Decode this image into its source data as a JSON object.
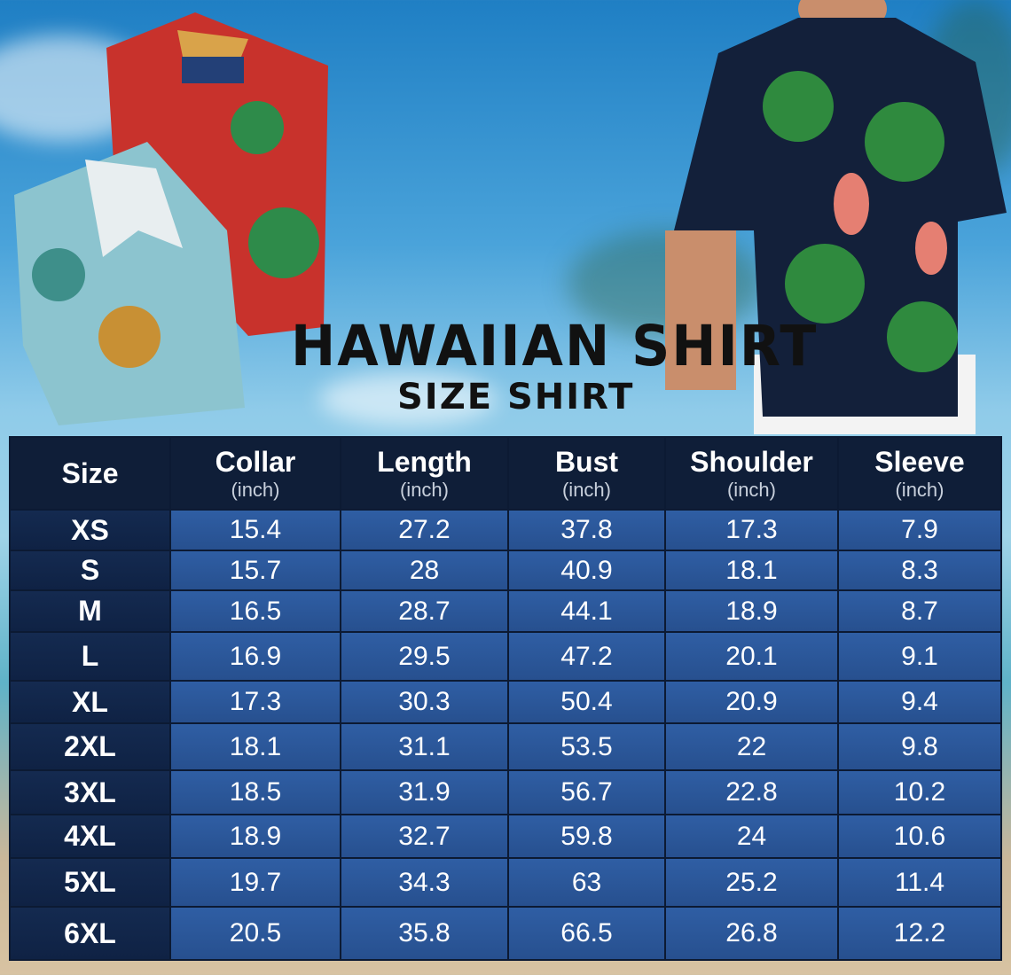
{
  "title": "HAWAIIAN SHIRT",
  "subtitle": "SIZE SHIRT",
  "colors": {
    "header_bg": "#0f1e38",
    "size_col_bg": "#142a50",
    "value_bg": "#2f5ea4",
    "text": "#ffffff"
  },
  "table": {
    "headers": [
      {
        "label": "Size",
        "unit": ""
      },
      {
        "label": "Collar",
        "unit": "(inch)"
      },
      {
        "label": "Length",
        "unit": "(inch)"
      },
      {
        "label": "Bust",
        "unit": "(inch)"
      },
      {
        "label": "Shoulder",
        "unit": "(inch)"
      },
      {
        "label": "Sleeve",
        "unit": "(inch)"
      }
    ],
    "rows": [
      [
        "XS",
        "15.4",
        "27.2",
        "37.8",
        "17.3",
        "7.9"
      ],
      [
        "S",
        "15.7",
        "28",
        "40.9",
        "18.1",
        "8.3"
      ],
      [
        "M",
        "16.5",
        "28.7",
        "44.1",
        "18.9",
        "8.7"
      ],
      [
        "L",
        "16.9",
        "29.5",
        "47.2",
        "20.1",
        "9.1"
      ],
      [
        "XL",
        "17.3",
        "30.3",
        "50.4",
        "20.9",
        "9.4"
      ],
      [
        "2XL",
        "18.1",
        "31.1",
        "53.5",
        "22",
        "9.8"
      ],
      [
        "3XL",
        "18.5",
        "31.9",
        "56.7",
        "22.8",
        "10.2"
      ],
      [
        "4XL",
        "18.9",
        "32.7",
        "59.8",
        "24",
        "10.6"
      ],
      [
        "5XL",
        "19.7",
        "34.3",
        "63",
        "25.2",
        "11.4"
      ],
      [
        "6XL",
        "20.5",
        "35.8",
        "66.5",
        "26.8",
        "12.2"
      ]
    ]
  }
}
